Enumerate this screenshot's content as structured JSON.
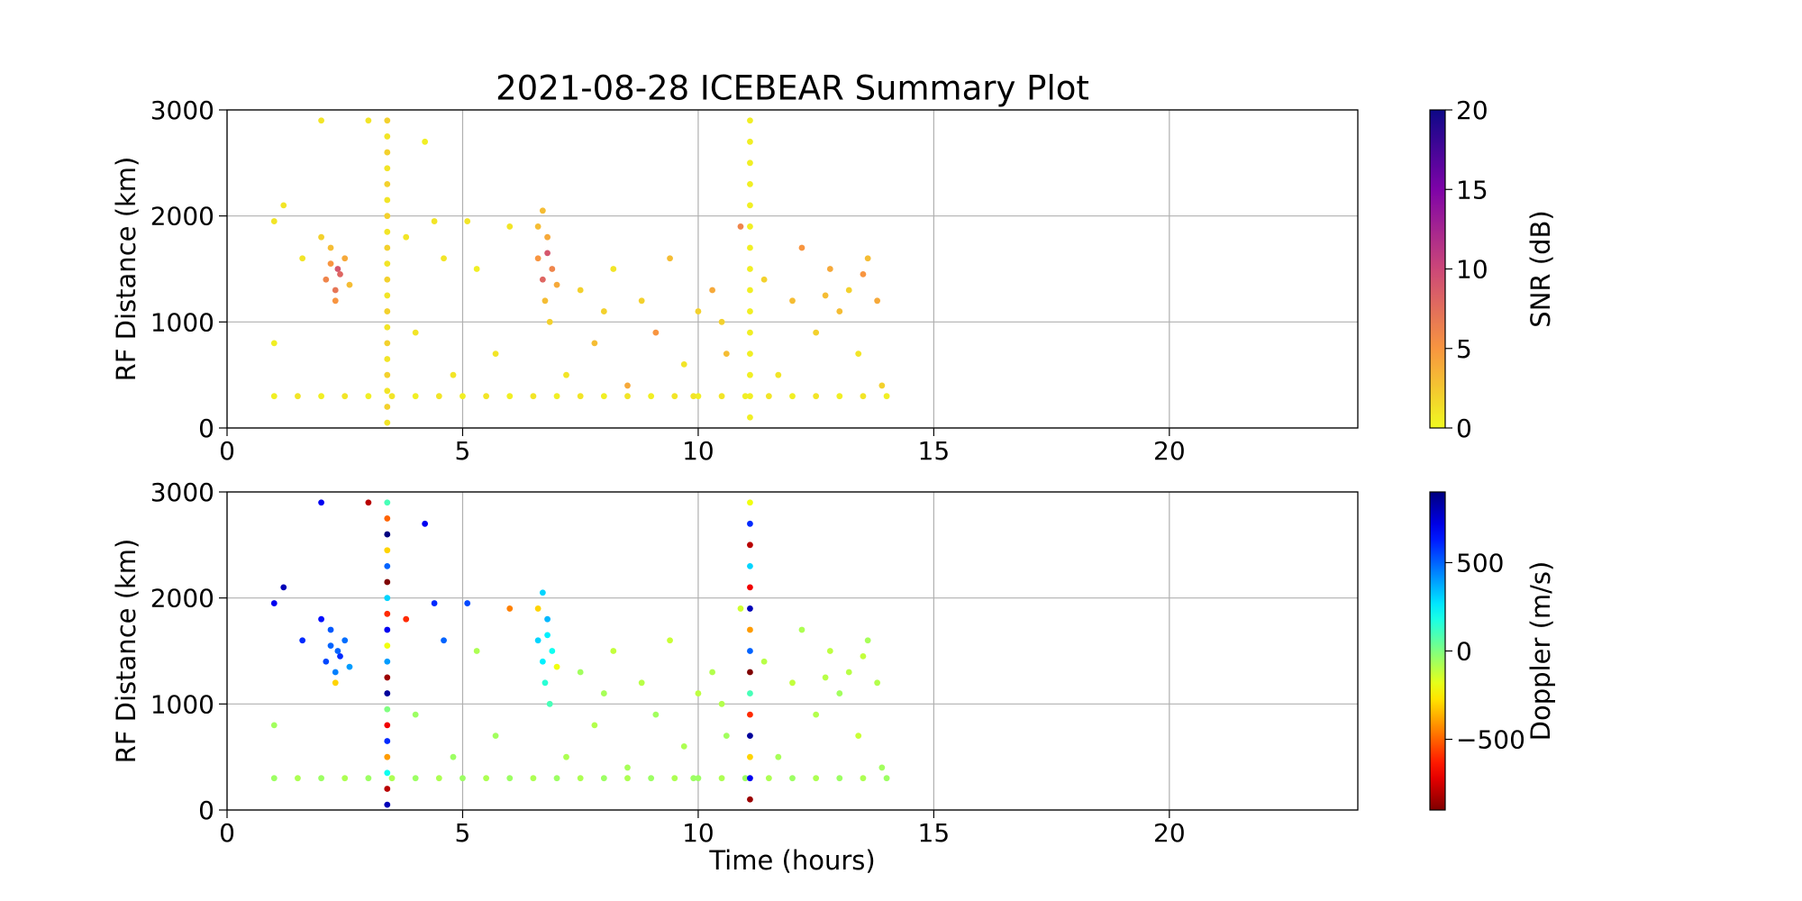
{
  "chart_data": [
    {
      "type": "scatter",
      "title": "2021-08-28 ICEBEAR Summary Plot",
      "ylabel": "RF Distance (km)",
      "xlim": [
        0,
        24
      ],
      "xticks": [
        0,
        5,
        10,
        15,
        20
      ],
      "ylim": [
        0,
        3000
      ],
      "yticks": [
        0,
        1000,
        2000,
        3000
      ],
      "grid": true,
      "colorbar": {
        "label": "SNR (dB)",
        "clim": [
          0,
          20
        ],
        "ticks": [
          0,
          5,
          10,
          15,
          20
        ],
        "colormap": "plasma_r"
      },
      "x": [
        1,
        1.5,
        2,
        2.5,
        3,
        3.5,
        4,
        4.5,
        5,
        5.5,
        6,
        6.5,
        7,
        7.5,
        8,
        8.5,
        9,
        9.5,
        10,
        10.5,
        11,
        11.5,
        12,
        12.5,
        13,
        13.5,
        14,
        3.4,
        3.4,
        3.4,
        3.4,
        3.4,
        3.4,
        3.4,
        3.4,
        3.4,
        3.4,
        3.4,
        3.4,
        3.4,
        3.4,
        3.4,
        3.4,
        3.4,
        3.4,
        3.4,
        3.4,
        11.1,
        11.1,
        11.1,
        11.1,
        11.1,
        11.1,
        11.1,
        11.1,
        11.1,
        11.1,
        11.1,
        11.1,
        11.1,
        11.1,
        11.1,
        2.1,
        2.2,
        2.3,
        2.4,
        2.2,
        2.5,
        2.3,
        2.0,
        2.6,
        2.35,
        6.6,
        6.7,
        6.8,
        6.9,
        6.75,
        6.85,
        6.7,
        7.0,
        6.6,
        6.8,
        1.0,
        1.2,
        1.0,
        1.6,
        2.0,
        3.0,
        3.8,
        4.0,
        4.2,
        4.4,
        4.6,
        5.1,
        5.3,
        6.0,
        5.7,
        4.8,
        7.5,
        7.8,
        8.2,
        8.5,
        8.8,
        9.1,
        9.4,
        9.7,
        10.0,
        10.3,
        10.6,
        10.9,
        11.4,
        11.7,
        12.0,
        12.2,
        12.5,
        12.8,
        13.0,
        13.2,
        13.4,
        13.6,
        13.8,
        13.9,
        7.2,
        9.9,
        12.7,
        13.5,
        10.5,
        8.0
      ],
      "y": [
        300,
        300,
        300,
        300,
        300,
        300,
        300,
        300,
        300,
        300,
        300,
        300,
        300,
        300,
        300,
        300,
        300,
        300,
        300,
        300,
        300,
        300,
        300,
        300,
        300,
        300,
        300,
        50,
        200,
        350,
        500,
        650,
        800,
        950,
        1100,
        1250,
        1400,
        1550,
        1700,
        1850,
        2000,
        2150,
        2300,
        2450,
        2600,
        2750,
        2900,
        100,
        300,
        500,
        700,
        900,
        1100,
        1300,
        1500,
        1700,
        1900,
        2100,
        2300,
        2500,
        2700,
        2900,
        1400,
        1550,
        1300,
        1450,
        1700,
        1600,
        1200,
        1800,
        1350,
        1500,
        1600,
        1400,
        1800,
        1500,
        1200,
        1000,
        2050,
        1350,
        1900,
        1650,
        1950,
        2100,
        800,
        1600,
        2900,
        2900,
        1800,
        900,
        2700,
        1950,
        1600,
        1950,
        1500,
        1900,
        700,
        500,
        1300,
        800,
        1500,
        400,
        1200,
        900,
        1600,
        600,
        1100,
        1300,
        700,
        1900,
        1400,
        500,
        1200,
        1700,
        900,
        1500,
        1100,
        1300,
        700,
        1600,
        1200,
        400,
        500,
        300,
        1250,
        1450,
        1000,
        1100
      ],
      "c": [
        0.5,
        1,
        0.5,
        1,
        0.5,
        1,
        0.5,
        1,
        0.5,
        1,
        0.5,
        1,
        0.5,
        1,
        0.5,
        1,
        0.5,
        1,
        0.5,
        1,
        0.5,
        1,
        0.5,
        1,
        0.5,
        1,
        0.5,
        1,
        2,
        1,
        2,
        1,
        2,
        1,
        2,
        1,
        2,
        1,
        2,
        1,
        2,
        1,
        2,
        1,
        2,
        1,
        2,
        0.5,
        0.5,
        0.5,
        0.5,
        0.5,
        0.5,
        0.5,
        0.5,
        0.5,
        0.5,
        0.5,
        0.5,
        0.5,
        0.5,
        0.5,
        6,
        5,
        7,
        8,
        3,
        4,
        5,
        2,
        3,
        9,
        5,
        8,
        4,
        6,
        3,
        2,
        3,
        4,
        3,
        9,
        1,
        1,
        0.5,
        1,
        1,
        1,
        1,
        1,
        0.5,
        1,
        1,
        1,
        0.5,
        1,
        1,
        1,
        2,
        3,
        1,
        4,
        2,
        5,
        3,
        1,
        2,
        4,
        3,
        6,
        2,
        1,
        3,
        5,
        2,
        4,
        3,
        2,
        1,
        3,
        4,
        2,
        1,
        1,
        3,
        5,
        2,
        2
      ]
    },
    {
      "type": "scatter",
      "ylabel": "RF Distance (km)",
      "xlabel": "Time (hours)",
      "xlim": [
        0,
        24
      ],
      "xticks": [
        0,
        5,
        10,
        15,
        20
      ],
      "ylim": [
        0,
        3000
      ],
      "yticks": [
        0,
        1000,
        2000,
        3000
      ],
      "grid": true,
      "colorbar": {
        "label": "Doppler (m/s)",
        "clim": [
          -900,
          900
        ],
        "ticks": [
          {
            "value": -500,
            "label": "−500"
          },
          0,
          500
        ],
        "colormap": "jet_r"
      },
      "x": [
        1,
        1.5,
        2,
        2.5,
        3,
        3.5,
        4,
        4.5,
        5,
        5.5,
        6,
        6.5,
        7,
        7.5,
        8,
        8.5,
        9,
        9.5,
        10,
        10.5,
        11,
        11.5,
        12,
        12.5,
        13,
        13.5,
        14,
        3.4,
        3.4,
        3.4,
        3.4,
        3.4,
        3.4,
        3.4,
        3.4,
        3.4,
        3.4,
        3.4,
        3.4,
        3.4,
        3.4,
        3.4,
        3.4,
        3.4,
        3.4,
        3.4,
        3.4,
        11.1,
        11.1,
        11.1,
        11.1,
        11.1,
        11.1,
        11.1,
        11.1,
        11.1,
        11.1,
        11.1,
        11.1,
        11.1,
        11.1,
        11.1,
        2.1,
        2.2,
        2.3,
        2.4,
        2.2,
        2.5,
        2.3,
        2.0,
        2.6,
        2.35,
        6.6,
        6.7,
        6.8,
        6.9,
        6.75,
        6.85,
        6.7,
        7.0,
        6.6,
        6.8,
        1.0,
        1.2,
        1.0,
        1.6,
        2.0,
        3.0,
        3.8,
        4.0,
        4.2,
        4.4,
        4.6,
        5.1,
        5.3,
        6.0,
        5.7,
        4.8,
        7.5,
        7.8,
        8.2,
        8.5,
        8.8,
        9.1,
        9.4,
        9.7,
        10.0,
        10.3,
        10.6,
        10.9,
        11.4,
        11.7,
        12.0,
        12.2,
        12.5,
        12.8,
        13.0,
        13.2,
        13.4,
        13.6,
        13.8,
        13.9,
        7.2,
        9.9,
        12.7,
        13.5,
        10.5,
        8.0
      ],
      "y": [
        300,
        300,
        300,
        300,
        300,
        300,
        300,
        300,
        300,
        300,
        300,
        300,
        300,
        300,
        300,
        300,
        300,
        300,
        300,
        300,
        300,
        300,
        300,
        300,
        300,
        300,
        300,
        50,
        200,
        350,
        500,
        650,
        800,
        950,
        1100,
        1250,
        1400,
        1550,
        1700,
        1850,
        2000,
        2150,
        2300,
        2450,
        2600,
        2750,
        2900,
        100,
        300,
        500,
        700,
        900,
        1100,
        1300,
        1500,
        1700,
        1900,
        2100,
        2300,
        2500,
        2700,
        2900,
        1400,
        1550,
        1300,
        1450,
        1700,
        1600,
        1200,
        1800,
        1350,
        1500,
        1600,
        1400,
        1800,
        1500,
        1200,
        1000,
        2050,
        1350,
        1900,
        1650,
        1950,
        2100,
        800,
        1600,
        2900,
        2900,
        1800,
        900,
        2700,
        1950,
        1600,
        1950,
        1500,
        1900,
        700,
        500,
        1300,
        800,
        1500,
        400,
        1200,
        900,
        1600,
        600,
        1100,
        1300,
        700,
        1900,
        1400,
        500,
        1200,
        1700,
        900,
        1500,
        1100,
        1300,
        700,
        1600,
        1200,
        400,
        500,
        300,
        1250,
        1450,
        1000,
        1100
      ],
      "c": [
        -50,
        -80,
        -50,
        -80,
        -50,
        -80,
        -50,
        -80,
        -50,
        -80,
        -50,
        -80,
        -50,
        -80,
        -50,
        -80,
        -50,
        -80,
        -50,
        -80,
        -50,
        -80,
        -50,
        -80,
        -50,
        -80,
        -50,
        800,
        -800,
        200,
        -400,
        600,
        -700,
        0,
        850,
        -850,
        400,
        -200,
        700,
        -600,
        300,
        -900,
        500,
        -300,
        900,
        -500,
        100,
        -850,
        700,
        -300,
        850,
        -600,
        100,
        -900,
        500,
        -400,
        800,
        -700,
        300,
        -800,
        600,
        -200,
        550,
        500,
        450,
        600,
        520,
        480,
        -300,
        650,
        400,
        500,
        300,
        250,
        350,
        200,
        150,
        100,
        300,
        -200,
        -300,
        250,
        700,
        800,
        -60,
        600,
        700,
        -800,
        -600,
        -50,
        700,
        600,
        500,
        550,
        -80,
        -450,
        -60,
        -50,
        -60,
        -90,
        -120,
        -70,
        -100,
        -60,
        -130,
        -80,
        -110,
        -90,
        -60,
        -140,
        -100,
        -70,
        -120,
        -80,
        -90,
        -110,
        -60,
        -100,
        -130,
        -70,
        -90,
        -60,
        -80,
        -50,
        -100,
        -120,
        -90,
        -70
      ]
    }
  ]
}
